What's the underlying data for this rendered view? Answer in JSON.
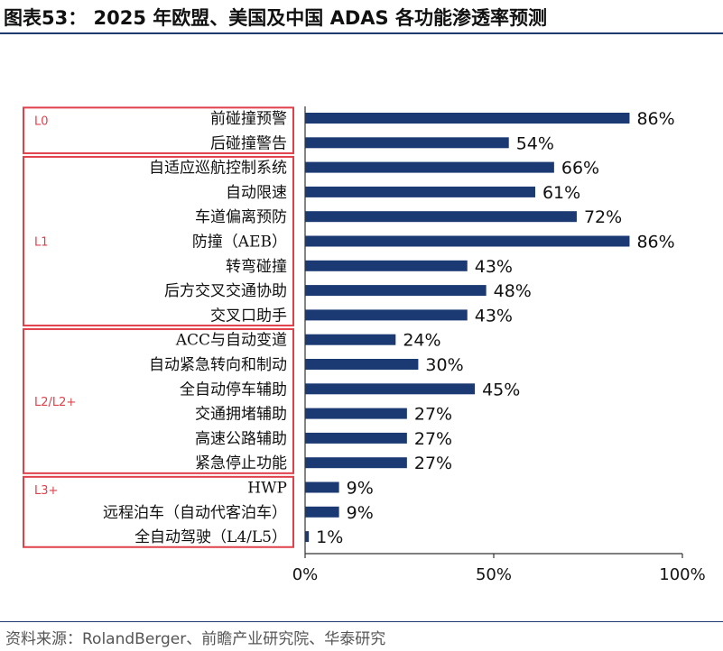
{
  "header": {
    "title": "图表53：  2025 年欧盟、美国及中国 ADAS 各功能渗透率预测"
  },
  "footer": {
    "source": "资料来源：RolandBerger、前瞻产业研究院、华泰研究"
  },
  "colors": {
    "bar": "#1b3a73",
    "group_border": "#e0404a",
    "group_label": "#e0404a",
    "rule": "#1f3a6e"
  },
  "chart_data": {
    "type": "bar",
    "orientation": "horizontal",
    "categories": [
      "前碰撞预警",
      "后碰撞警告",
      "自适应巡航控制系统",
      "自动限速",
      "车道偏离预防",
      "防撞（AEB）",
      "转弯碰撞",
      "后方交叉交通协助",
      "交叉口助手",
      "ACC与自动变道",
      "自动紧急转向和制动",
      "全自动停车辅助",
      "交通拥堵辅助",
      "高速公路辅助",
      "紧急停止功能",
      "HWP",
      "远程泊车（自动代客泊车）",
      "全自动驾驶（L4/L5）"
    ],
    "values": [
      86,
      54,
      66,
      61,
      72,
      86,
      43,
      48,
      43,
      24,
      30,
      45,
      27,
      27,
      27,
      9,
      9,
      1
    ],
    "value_labels": [
      "86%",
      "54%",
      "66%",
      "61%",
      "72%",
      "86%",
      "43%",
      "48%",
      "43%",
      "24%",
      "30%",
      "45%",
      "27%",
      "27%",
      "27%",
      "9%",
      "9%",
      "1%"
    ],
    "groups": [
      {
        "label": "L0",
        "start": 0,
        "end": 1
      },
      {
        "label": "L1",
        "start": 2,
        "end": 8
      },
      {
        "label": "L2/L2+",
        "start": 9,
        "end": 14
      },
      {
        "label": "L3+",
        "start": 15,
        "end": 17
      }
    ],
    "xlim": [
      0,
      100
    ],
    "xticks": [
      0,
      50,
      100
    ],
    "xtick_labels": [
      "0%",
      "50%",
      "100%"
    ],
    "grid": false,
    "legend": "none"
  }
}
